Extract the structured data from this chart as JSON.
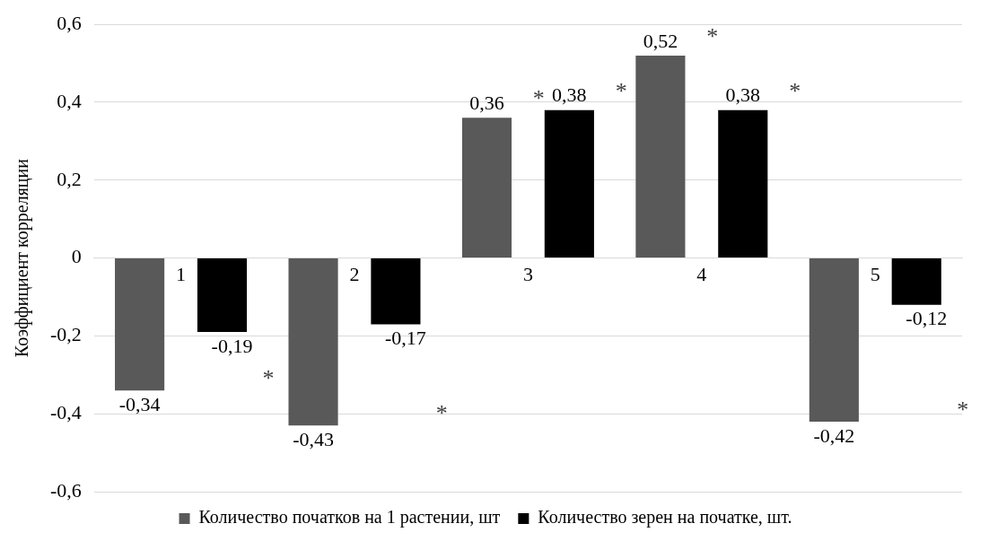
{
  "chart_data": {
    "type": "bar",
    "ylabel": "Коэффициент корреляции",
    "categories": [
      "1",
      "2",
      "3",
      "4",
      "5"
    ],
    "series": [
      {
        "name": "Количество початков на 1 растении, шт",
        "color": "#595959",
        "values": [
          -0.34,
          -0.43,
          0.36,
          0.52,
          -0.42
        ],
        "value_labels": [
          "-0,34",
          "-0,43",
          "0,36",
          "0,52",
          "-0,42"
        ]
      },
      {
        "name": "Количество зерен на початке, шт.",
        "color": "#000000",
        "values": [
          -0.19,
          -0.17,
          0.38,
          0.38,
          -0.12
        ],
        "value_labels": [
          "-0,19",
          "-0,17",
          "0,38",
          "0,38",
          "-0,12"
        ]
      }
    ],
    "ylim": [
      -0.6,
      0.6
    ],
    "yticks": [
      {
        "value": -0.6,
        "label": "-0,6"
      },
      {
        "value": -0.4,
        "label": "-0,4"
      },
      {
        "value": -0.2,
        "label": "-0,2"
      },
      0,
      {
        "value": 0.2,
        "label": "0,2"
      },
      {
        "value": 0.4,
        "label": "0,4"
      },
      {
        "value": 0.6,
        "label": "0,6"
      }
    ],
    "grid": "y",
    "legend": "bottom",
    "annotations": [
      "*",
      "*",
      "*",
      "*",
      "*",
      "*",
      "*"
    ]
  }
}
